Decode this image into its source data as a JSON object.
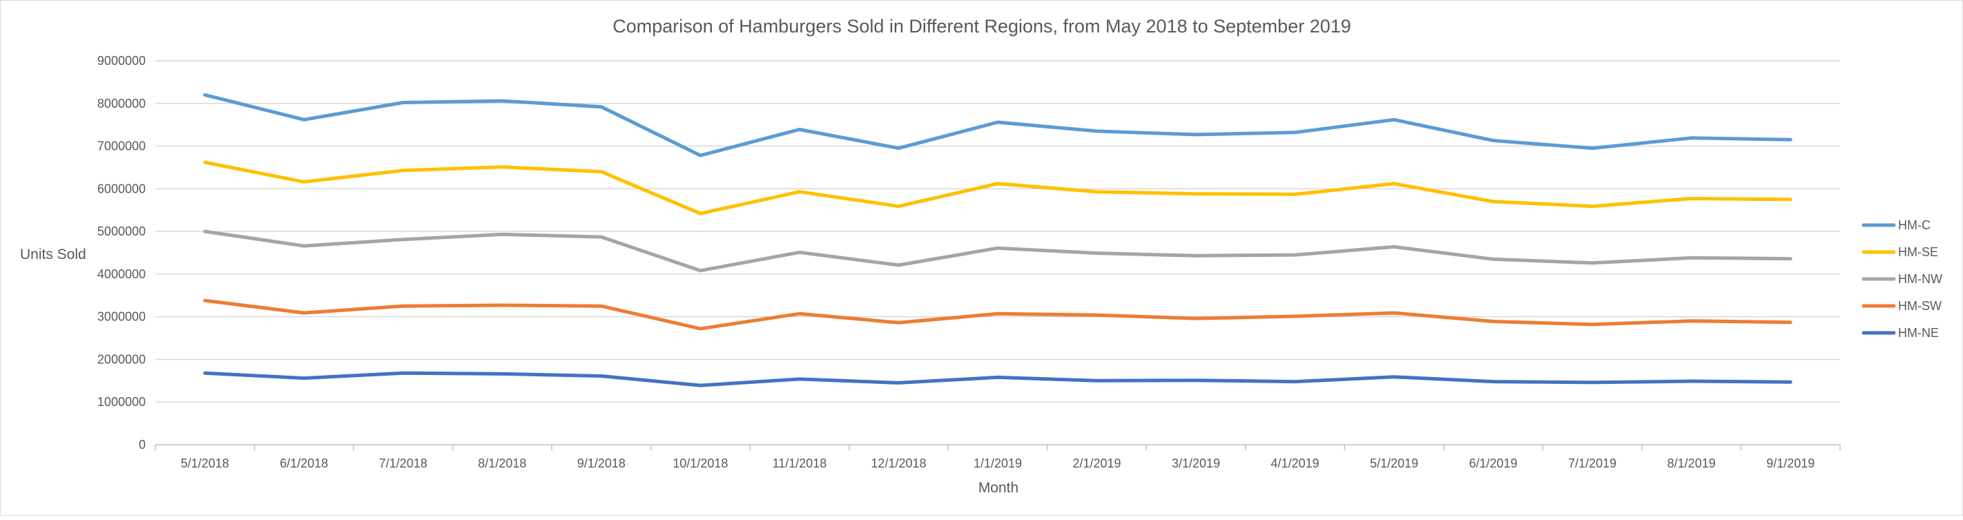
{
  "chart_data": {
    "type": "line",
    "title": "Comparison of Hamburgers Sold in Different Regions, from May 2018 to September 2019",
    "xlabel": "Month",
    "ylabel": "Units Sold",
    "ylim": [
      0,
      9000000
    ],
    "yticks": [
      "0",
      "1000000",
      "2000000",
      "3000000",
      "4000000",
      "5000000",
      "6000000",
      "7000000",
      "8000000",
      "9000000"
    ],
    "categories": [
      "5/1/2018",
      "6/1/2018",
      "7/1/2018",
      "8/1/2018",
      "9/1/2018",
      "10/1/2018",
      "11/1/2018",
      "12/1/2018",
      "1/1/2019",
      "2/1/2019",
      "3/1/2019",
      "4/1/2019",
      "5/1/2019",
      "6/1/2019",
      "7/1/2019",
      "8/1/2019",
      "9/1/2019"
    ],
    "grid": true,
    "legend_position": "right",
    "series": [
      {
        "name": "HM-C",
        "color": "#5b9bd5",
        "values": [
          8200000,
          7620000,
          8020000,
          8060000,
          7920000,
          6780000,
          7390000,
          6950000,
          7560000,
          7350000,
          7270000,
          7320000,
          7620000,
          7130000,
          6950000,
          7190000,
          7150000
        ]
      },
      {
        "name": "HM-SE",
        "color": "#ffc000",
        "values": [
          6620000,
          6160000,
          6430000,
          6510000,
          6400000,
          5420000,
          5930000,
          5590000,
          6120000,
          5930000,
          5880000,
          5870000,
          6120000,
          5700000,
          5590000,
          5770000,
          5750000
        ]
      },
      {
        "name": "HM-NW",
        "color": "#a5a5a5",
        "values": [
          5000000,
          4660000,
          4810000,
          4930000,
          4870000,
          4080000,
          4510000,
          4210000,
          4610000,
          4490000,
          4430000,
          4450000,
          4640000,
          4350000,
          4260000,
          4380000,
          4360000
        ]
      },
      {
        "name": "HM-SW",
        "color": "#ed7d31",
        "values": [
          3380000,
          3090000,
          3250000,
          3270000,
          3250000,
          2720000,
          3070000,
          2860000,
          3070000,
          3040000,
          2960000,
          3010000,
          3090000,
          2890000,
          2820000,
          2900000,
          2870000
        ]
      },
      {
        "name": "HM-NE",
        "color": "#4472c4",
        "values": [
          1680000,
          1560000,
          1680000,
          1660000,
          1610000,
          1390000,
          1540000,
          1450000,
          1580000,
          1500000,
          1510000,
          1480000,
          1590000,
          1480000,
          1460000,
          1490000,
          1470000
        ]
      }
    ]
  }
}
